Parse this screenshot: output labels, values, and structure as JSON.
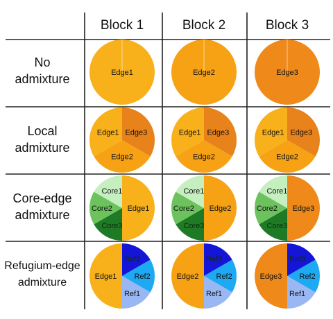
{
  "columns": [
    "Block 1",
    "Block 2",
    "Block 3"
  ],
  "rows": [
    {
      "label_lines": [
        "No",
        "admixture"
      ]
    },
    {
      "label_lines": [
        "Local",
        "admixture"
      ]
    },
    {
      "label_lines": [
        "Core-edge",
        "admixture"
      ]
    },
    {
      "label_lines": [
        "Refugium-edge",
        "admixture"
      ]
    }
  ],
  "colors": {
    "edge1": "#f8b01b",
    "edge2": "#f7a215",
    "edge3": "#ef8a1a",
    "edge3_dark": "#e8821a",
    "core1": "#c6efc0",
    "core2": "#6cc25c",
    "core3": "#1e7a25",
    "ref1": "#99b8f3",
    "ref2": "#1ea9f3",
    "ref3": "#1515d8",
    "grid": "#222222"
  },
  "pies": [
    [
      {
        "slices": [
          {
            "label": "Edge1",
            "color": "edge1",
            "start": 0,
            "end": 360
          }
        ]
      },
      {
        "slices": [
          {
            "label": "Edge2",
            "color": "edge2",
            "start": 0,
            "end": 360
          }
        ]
      },
      {
        "slices": [
          {
            "label": "Edge3",
            "color": "edge3",
            "start": 0,
            "end": 360
          }
        ]
      }
    ],
    [
      {
        "slices": [
          {
            "label": "Edge1",
            "color": "edge1",
            "start": 240,
            "end": 360
          },
          {
            "label": "Edge3",
            "color": "edge3_dark",
            "start": 0,
            "end": 120
          },
          {
            "label": "Edge2",
            "color": "edge2",
            "start": 120,
            "end": 240
          }
        ]
      },
      {
        "slices": [
          {
            "label": "Edge1",
            "color": "edge1",
            "start": 240,
            "end": 360
          },
          {
            "label": "Edge3",
            "color": "edge3_dark",
            "start": 0,
            "end": 120
          },
          {
            "label": "Edge2",
            "color": "edge2",
            "start": 120,
            "end": 240
          }
        ]
      },
      {
        "slices": [
          {
            "label": "Edge1",
            "color": "edge1",
            "start": 240,
            "end": 360
          },
          {
            "label": "Edge3",
            "color": "edge3_dark",
            "start": 0,
            "end": 120
          },
          {
            "label": "Edge2",
            "color": "edge2",
            "start": 120,
            "end": 240
          }
        ]
      }
    ],
    [
      {
        "slices": [
          {
            "label": "Edge1",
            "color": "edge1",
            "start": 0,
            "end": 180
          },
          {
            "label": "Core3",
            "color": "core3",
            "start": 180,
            "end": 240
          },
          {
            "label": "Core2",
            "color": "core2",
            "start": 240,
            "end": 300
          },
          {
            "label": "Core1",
            "color": "core1",
            "start": 300,
            "end": 360
          }
        ]
      },
      {
        "slices": [
          {
            "label": "Edge2",
            "color": "edge2",
            "start": 0,
            "end": 180
          },
          {
            "label": "Core3",
            "color": "core3",
            "start": 180,
            "end": 240
          },
          {
            "label": "Core2",
            "color": "core2",
            "start": 240,
            "end": 300
          },
          {
            "label": "Core1",
            "color": "core1",
            "start": 300,
            "end": 360
          }
        ]
      },
      {
        "slices": [
          {
            "label": "Edge3",
            "color": "edge3",
            "start": 0,
            "end": 180
          },
          {
            "label": "Core3",
            "color": "core3",
            "start": 180,
            "end": 240
          },
          {
            "label": "Core2",
            "color": "core2",
            "start": 240,
            "end": 300
          },
          {
            "label": "Core1",
            "color": "core1",
            "start": 300,
            "end": 360
          }
        ]
      }
    ],
    [
      {
        "slices": [
          {
            "label": "Edge1",
            "color": "edge1",
            "start": 180,
            "end": 360
          },
          {
            "label": "Ref3",
            "color": "ref3",
            "start": 0,
            "end": 60
          },
          {
            "label": "Ref2",
            "color": "ref2",
            "start": 60,
            "end": 120
          },
          {
            "label": "Ref1",
            "color": "ref1",
            "start": 120,
            "end": 180
          }
        ]
      },
      {
        "slices": [
          {
            "label": "Edge2",
            "color": "edge2",
            "start": 180,
            "end": 360
          },
          {
            "label": "Ref3",
            "color": "ref3",
            "start": 0,
            "end": 60
          },
          {
            "label": "Ref2",
            "color": "ref2",
            "start": 60,
            "end": 120
          },
          {
            "label": "Ref1",
            "color": "ref1",
            "start": 120,
            "end": 180
          }
        ]
      },
      {
        "slices": [
          {
            "label": "Edge3",
            "color": "edge3",
            "start": 180,
            "end": 360
          },
          {
            "label": "Ref3",
            "color": "ref3",
            "start": 0,
            "end": 60
          },
          {
            "label": "Ref2",
            "color": "ref2",
            "start": 60,
            "end": 120
          },
          {
            "label": "Ref1",
            "color": "ref1",
            "start": 120,
            "end": 180
          }
        ]
      }
    ]
  ]
}
